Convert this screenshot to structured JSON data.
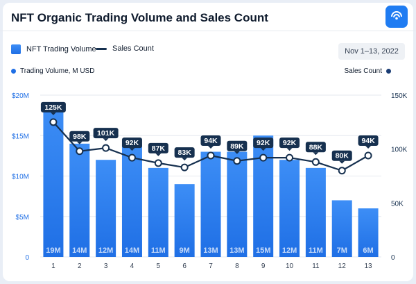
{
  "header": {
    "title": "NFT Organic Trading Volume and Sales Count"
  },
  "legend": {
    "bar_label": "NFT Trading Volume",
    "line_label": "Sales Count"
  },
  "date_range": "Nov 1–13, 2022",
  "axis_titles": {
    "left": "Trading Volume, M USD",
    "right": "Sales Count"
  },
  "colors": {
    "bar_top": "#3d8ef6",
    "bar_bottom": "#1f6fe5",
    "line": "#16304f",
    "grid": "#e6e9ef",
    "left_tick": "#1f6fe5",
    "right_tick": "#16304f"
  },
  "chart_data": {
    "type": "bar",
    "categories": [
      "1",
      "2",
      "3",
      "4",
      "5",
      "6",
      "7",
      "8",
      "9",
      "10",
      "11",
      "12",
      "13"
    ],
    "series": [
      {
        "name": "NFT Trading Volume",
        "type": "bar",
        "axis": "left",
        "values": [
          19,
          14,
          12,
          14,
          11,
          9,
          13,
          13,
          15,
          12,
          11,
          7,
          6
        ],
        "labels": [
          "19M",
          "14M",
          "12M",
          "14M",
          "11M",
          "9M",
          "13M",
          "13M",
          "15M",
          "12M",
          "11M",
          "7M",
          "6M"
        ]
      },
      {
        "name": "Sales Count",
        "type": "line",
        "axis": "right",
        "values": [
          125,
          98,
          101,
          92,
          87,
          83,
          94,
          89,
          92,
          92,
          88,
          80,
          94
        ],
        "labels": [
          "125K",
          "98K",
          "101K",
          "92K",
          "87K",
          "83K",
          "94K",
          "89K",
          "92K",
          "92K",
          "88K",
          "80K",
          "94K"
        ]
      }
    ],
    "left_axis": {
      "ylim": [
        0,
        20
      ],
      "ticks": [
        0,
        5,
        10,
        15,
        20
      ],
      "tick_labels": [
        "0",
        "$5M",
        "$10M",
        "$15M",
        "$20M"
      ]
    },
    "right_axis": {
      "ylim": [
        0,
        150
      ],
      "ticks": [
        0,
        50,
        100,
        150
      ],
      "tick_labels": [
        "0",
        "50K",
        "100K",
        "150K"
      ]
    },
    "grid": true,
    "legend_position": "top-left"
  }
}
